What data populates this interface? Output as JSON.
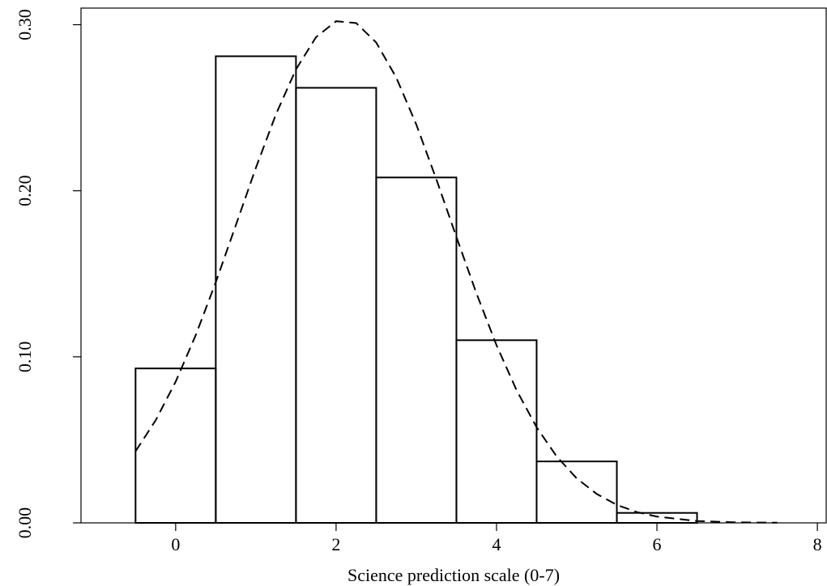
{
  "chart_data": {
    "type": "histogram",
    "xlabel": "Science prediction scale (0-7)",
    "bins": [
      -0.5,
      0.5,
      1.5,
      2.5,
      3.5,
      4.5,
      5.5,
      6.5
    ],
    "values": [
      0.093,
      0.281,
      0.262,
      0.208,
      0.11,
      0.037,
      0.006
    ],
    "color": "#000000",
    "density": {
      "dash": true,
      "color": "#000000",
      "x": [
        -0.5,
        -0.25,
        0,
        0.25,
        0.5,
        0.75,
        1,
        1.25,
        1.5,
        1.75,
        2,
        2.25,
        2.5,
        2.75,
        3,
        3.25,
        3.5,
        3.75,
        4,
        4.25,
        4.5,
        4.75,
        5,
        5.25,
        5.5,
        5.75,
        6,
        6.5,
        7,
        7.5
      ],
      "values": [
        0.0431,
        0.0617,
        0.085,
        0.113,
        0.1449,
        0.1792,
        0.2138,
        0.246,
        0.2731,
        0.2925,
        0.3021,
        0.301,
        0.2893,
        0.2682,
        0.2399,
        0.2069,
        0.1722,
        0.1382,
        0.107,
        0.0799,
        0.0576,
        0.04,
        0.0268,
        0.0174,
        0.0108,
        0.0065,
        0.0038,
        0.0011,
        0.0003,
        0.0001
      ]
    },
    "xlim": [
      -1.18,
      8.11
    ],
    "ylim": [
      0,
      0.31
    ],
    "xticks": [
      0,
      2,
      4,
      6,
      8
    ],
    "yticks": [
      {
        "value": 0,
        "label": "0.00"
      },
      {
        "value": 0.1,
        "label": "0.10"
      },
      {
        "value": 0.2,
        "label": "0.20"
      },
      {
        "value": 0.3,
        "label": "0.30"
      }
    ]
  }
}
